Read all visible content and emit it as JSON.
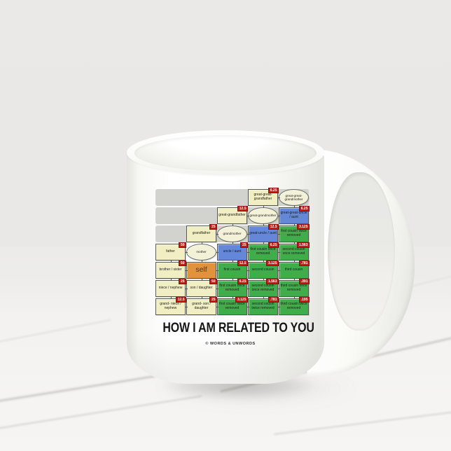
{
  "design": {
    "title": "HOW I AM RELATED TO YOU",
    "credit": "© WORDS & UNWORDS"
  },
  "legend_colors": {
    "direct_relative": "#f1eec3",
    "spouse_ellipse": "#f3f1d8",
    "uncle_aunt": "#6487da",
    "cousin": "#3fae4a",
    "self": "#e2923b",
    "percent_badge": "#cb1a12",
    "generation_band": "#d2d2cf"
  },
  "chart": {
    "type": "genealogy-grid",
    "columns": 5,
    "band_rows": [
      0,
      1,
      2
    ],
    "rows": [
      {
        "cells": [
          {
            "col": 3,
            "shape": "box",
            "type": "direct",
            "label": "great-great-grandfather",
            "badge": "6.25"
          },
          {
            "col": 4,
            "shape": "ellipse",
            "type": "spouse",
            "label": "great-great-grandmother"
          }
        ]
      },
      {
        "cells": [
          {
            "col": 2,
            "shape": "box",
            "type": "direct",
            "label": "great-grandfather",
            "badge": "12.5"
          },
          {
            "col": 3,
            "shape": "ellipse",
            "type": "spouse",
            "label": "great-grandmother"
          },
          {
            "col": 4,
            "shape": "box",
            "type": "uncle",
            "label": "great-great-uncle / aunt",
            "badge": "6.25"
          }
        ]
      },
      {
        "cells": [
          {
            "col": 1,
            "shape": "box",
            "type": "direct",
            "label": "grandfather",
            "badge": "25"
          },
          {
            "col": 2,
            "shape": "ellipse",
            "type": "spouse",
            "label": "grandmother"
          },
          {
            "col": 3,
            "shape": "box",
            "type": "uncle",
            "label": "great-uncle / aunt",
            "badge": "12.5"
          },
          {
            "col": 4,
            "shape": "box",
            "type": "cousin",
            "label": "first cousin twice removed",
            "badge": "3.125"
          }
        ]
      },
      {
        "cells": [
          {
            "col": 0,
            "shape": "box",
            "type": "direct",
            "label": "father",
            "badge": "50"
          },
          {
            "col": 1,
            "shape": "ellipse",
            "type": "spouse",
            "label": "mother"
          },
          {
            "col": 2,
            "shape": "box",
            "type": "uncle",
            "label": "uncle / aunt",
            "badge": "25"
          },
          {
            "col": 3,
            "shape": "box",
            "type": "cousin",
            "label": "first cousin once removed",
            "badge": "6.25"
          },
          {
            "col": 4,
            "shape": "box",
            "type": "cousin",
            "label": "second cousin once removed",
            "badge": "1.563"
          }
        ]
      },
      {
        "cells": [
          {
            "col": 0,
            "shape": "box",
            "type": "direct",
            "label": "brother / sister",
            "badge": "50"
          },
          {
            "col": 1,
            "shape": "box",
            "type": "self",
            "label": "self"
          },
          {
            "col": 2,
            "shape": "box",
            "type": "cousin",
            "label": "first cousin",
            "badge": "12.5"
          },
          {
            "col": 3,
            "shape": "box",
            "type": "cousin",
            "label": "second cousin",
            "badge": "3.125"
          },
          {
            "col": 4,
            "shape": "box",
            "type": "cousin",
            "label": "third cousin",
            "badge": ".781"
          }
        ]
      },
      {
        "cells": [
          {
            "col": 0,
            "shape": "box",
            "type": "direct",
            "label": "niece / nephew",
            "badge": "25"
          },
          {
            "col": 1,
            "shape": "box",
            "type": "direct",
            "label": "son / daughter",
            "badge": "50"
          },
          {
            "col": 2,
            "shape": "box",
            "type": "cousin",
            "label": "first cousin once removed",
            "badge": "6.25"
          },
          {
            "col": 3,
            "shape": "box",
            "type": "cousin",
            "label": "second cousin once removed",
            "badge": "1.563"
          },
          {
            "col": 4,
            "shape": "box",
            "type": "cousin",
            "label": "third cousin once removed",
            "badge": ".391"
          }
        ]
      },
      {
        "cells": [
          {
            "col": 0,
            "shape": "box",
            "type": "direct",
            "label": "grand- niece / nephew",
            "badge": "12.5"
          },
          {
            "col": 1,
            "shape": "box",
            "type": "direct",
            "label": "grand- son / daughter",
            "badge": "25"
          },
          {
            "col": 2,
            "shape": "box",
            "type": "cousin",
            "label": "first cousin twice removed",
            "badge": "3.125"
          },
          {
            "col": 3,
            "shape": "box",
            "type": "cousin",
            "label": "second cousin twice removed",
            "badge": ".781"
          },
          {
            "col": 4,
            "shape": "box",
            "type": "cousin",
            "label": "third cousin twice removed",
            "badge": ".195"
          }
        ]
      }
    ]
  }
}
